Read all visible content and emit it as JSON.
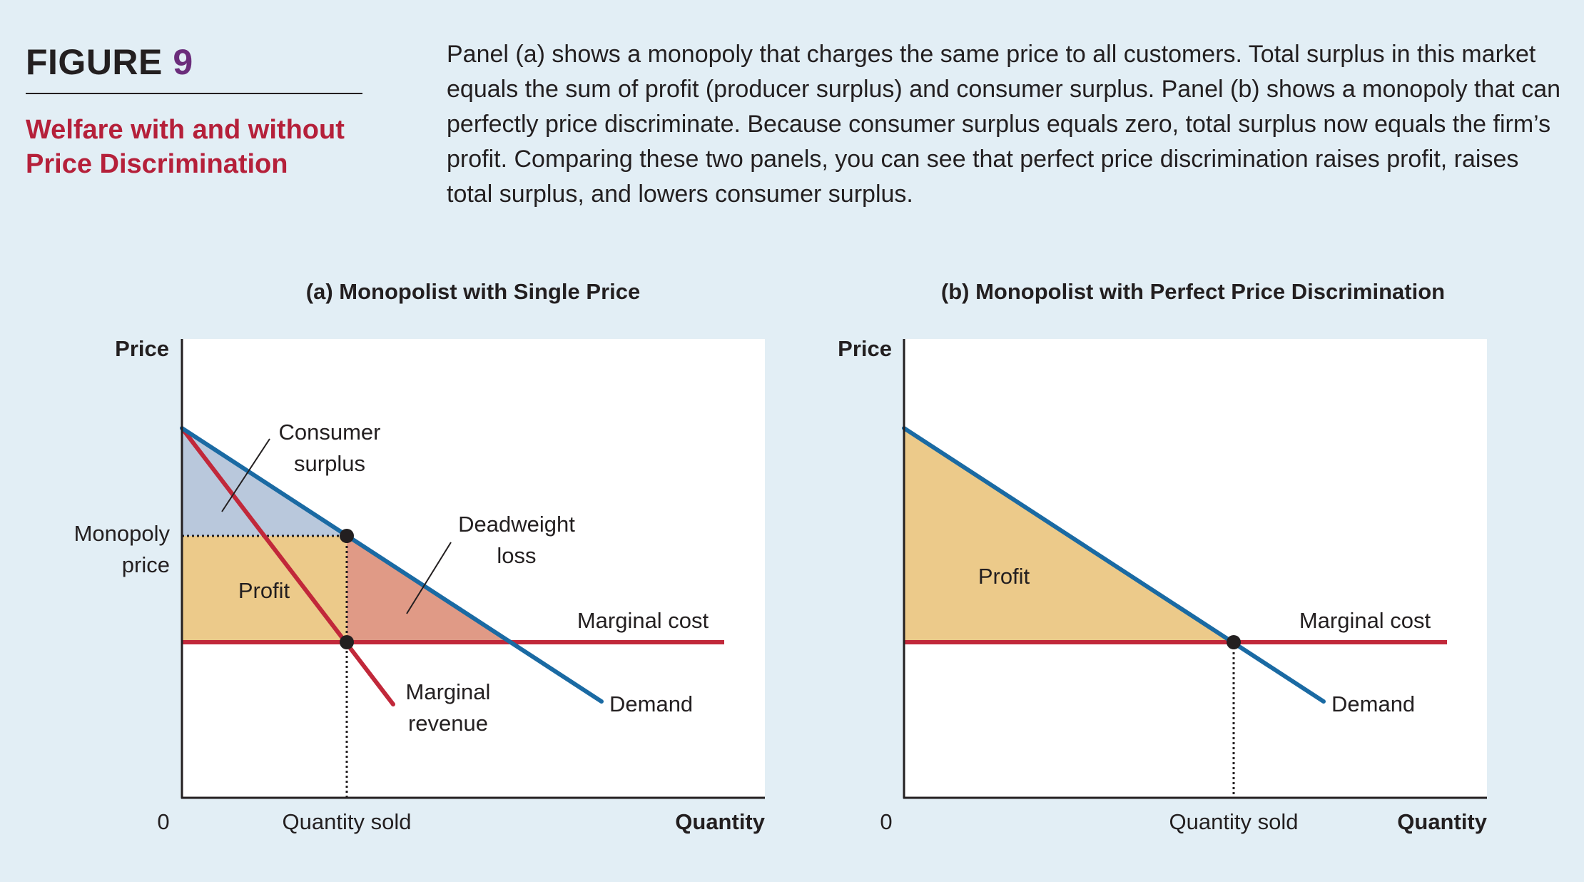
{
  "figure": {
    "label": "FIGURE",
    "number": "9",
    "subtitle": "Welfare with and without Price Discrimination",
    "caption": "Panel (a) shows a monopoly that charges the same price to all customers. Total surplus in this market equals the sum of profit (producer surplus) and consumer surplus. Panel (b) shows a monopoly that can perfectly price discriminate. Because consumer surplus equals zero, total surplus now equals the firm’s profit. Comparing these two panels, you can see that perfect price discrimination raises profit, raises total surplus, and lowers consumer surplus."
  },
  "panel_a": {
    "title": "(a) Monopolist with Single Price",
    "y_axis_label": "Price",
    "x_axis_label": "Quantity",
    "origin_label": "0",
    "monopoly_price_line1": "Monopoly",
    "monopoly_price_line2": "price",
    "quantity_sold_label": "Quantity sold",
    "consumer_surplus_line1": "Consumer",
    "consumer_surplus_line2": "surplus",
    "deadweight_loss_line1": "Deadweight",
    "deadweight_loss_line2": "loss",
    "profit_label": "Profit",
    "marginal_cost_label": "Marginal cost",
    "marginal_revenue_line1": "Marginal",
    "marginal_revenue_line2": "revenue",
    "demand_label": "Demand"
  },
  "panel_b": {
    "title": "(b) Monopolist with Perfect Price Discrimination",
    "y_axis_label": "Price",
    "x_axis_label": "Quantity",
    "origin_label": "0",
    "quantity_sold_label": "Quantity sold",
    "profit_label": "Profit",
    "marginal_cost_label": "Marginal cost",
    "demand_label": "Demand"
  },
  "colors": {
    "background": "#e2eef5",
    "demand": "#1a6aa3",
    "marginal_cost": "#c1283a",
    "marginal_revenue": "#c1283a",
    "profit_fill": "#ecca8a",
    "consumer_surplus_fill": "#b9c8dc",
    "deadweight_loss_fill": "#e09a86",
    "title_accent": "#b5203a",
    "figure_number": "#6b2d7b"
  }
}
